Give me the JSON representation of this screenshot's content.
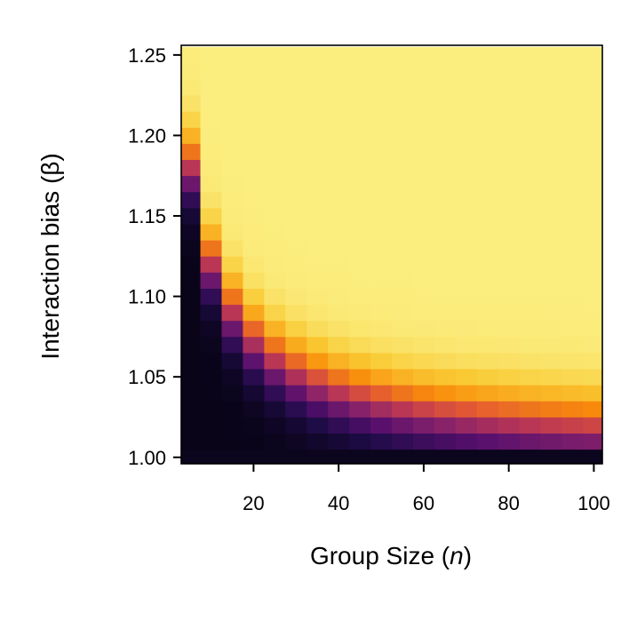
{
  "chart_data": {
    "type": "heatmap",
    "title": "",
    "xlabel": "Group Size (n)",
    "xlabel_parts": {
      "prefix": "Group Size (",
      "var": "n",
      "suffix": ")"
    },
    "ylabel": "Interaction bias (β)",
    "xlim": [
      3,
      102
    ],
    "ylim": [
      0.996,
      1.256
    ],
    "xticks": [
      20,
      40,
      60,
      80,
      100
    ],
    "xtick_labels": [
      "20",
      "40",
      "60",
      "80",
      "100"
    ],
    "yticks": [
      1.0,
      1.05,
      1.1,
      1.15,
      1.2,
      1.25
    ],
    "ytick_labels": [
      "1.00",
      "1.05",
      "1.10",
      "1.15",
      "1.20",
      "1.25"
    ],
    "x_values": [
      5,
      10,
      15,
      20,
      25,
      30,
      35,
      40,
      45,
      50,
      55,
      60,
      65,
      70,
      75,
      80,
      85,
      90,
      95,
      100
    ],
    "y_values": [
      1.0,
      1.01,
      1.02,
      1.03,
      1.04,
      1.05,
      1.06,
      1.07,
      1.08,
      1.09,
      1.1,
      1.11,
      1.12,
      1.13,
      1.14,
      1.15,
      1.16,
      1.17,
      1.18,
      1.19,
      1.2,
      1.21,
      1.22,
      1.23,
      1.24,
      1.25
    ],
    "colormap": "inferno",
    "value_range": [
      0,
      1
    ],
    "legend": "none",
    "grid": false
  }
}
